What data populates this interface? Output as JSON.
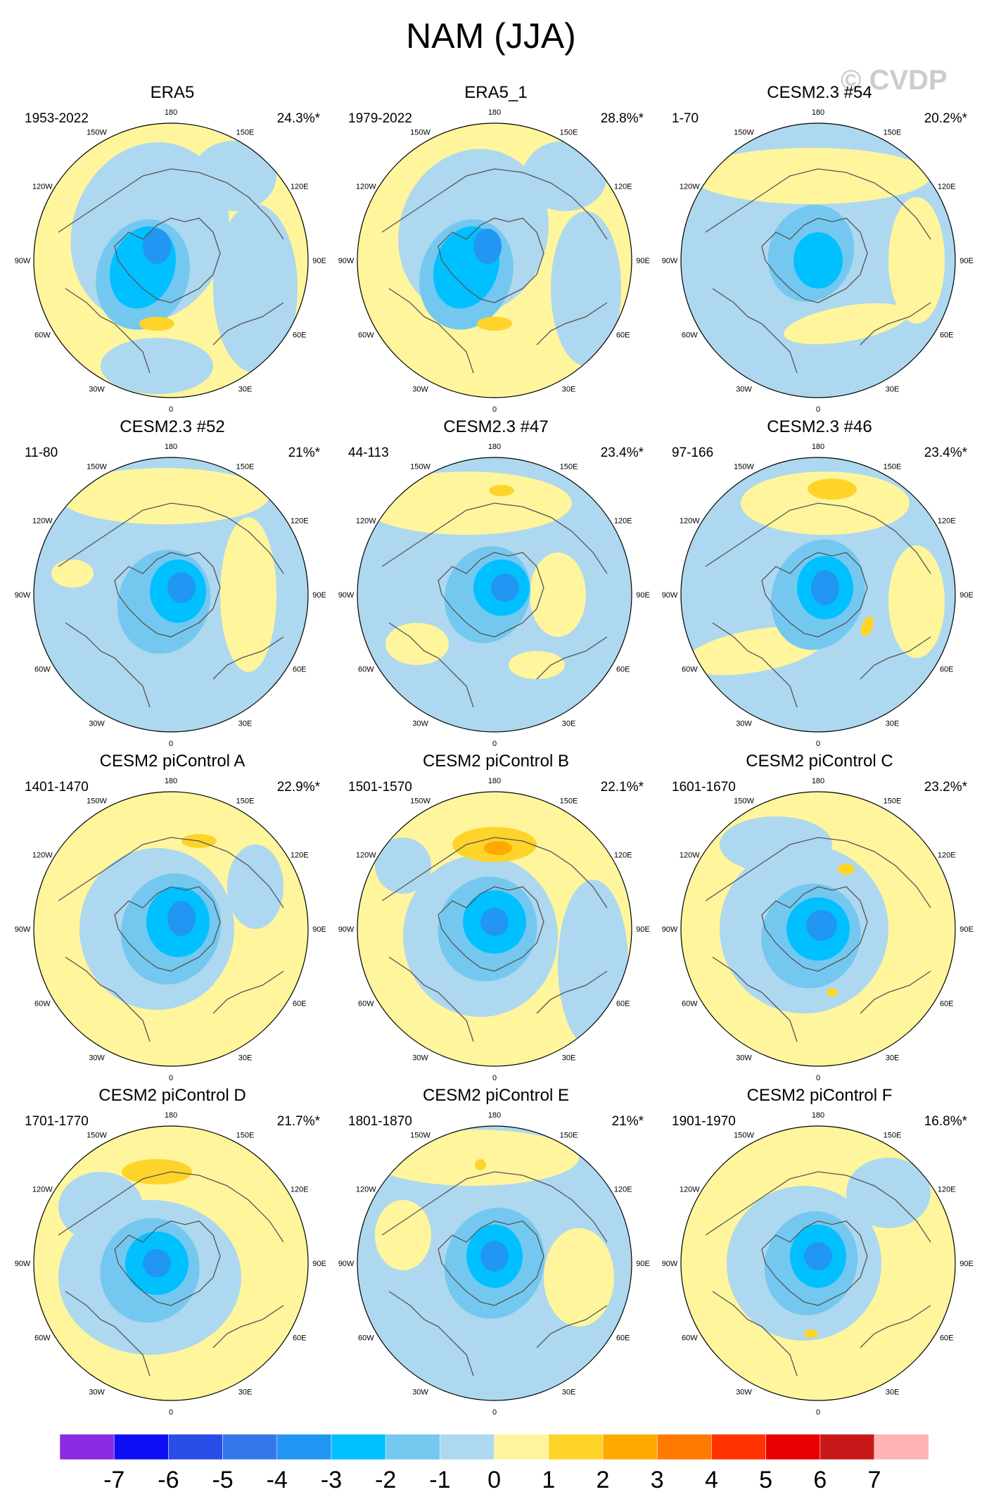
{
  "figure": {
    "title": "NAM (JJA)",
    "watermark": "© CVDP"
  },
  "map_labels": {
    "lon": [
      "180",
      "150E",
      "120E",
      "90E",
      "60E",
      "30E",
      "0",
      "30W",
      "60W",
      "90W",
      "120W",
      "150W"
    ]
  },
  "panels": [
    {
      "title": "ERA5",
      "years": "1953-2022",
      "pct": "24.3%*"
    },
    {
      "title": "ERA5_1",
      "years": "1979-2022",
      "pct": "28.8%*"
    },
    {
      "title": "CESM2.3 #54",
      "years": "1-70",
      "pct": "20.2%*"
    },
    {
      "title": "CESM2.3 #52",
      "years": "11-80",
      "pct": "21%*"
    },
    {
      "title": "CESM2.3 #47",
      "years": "44-113",
      "pct": "23.4%*"
    },
    {
      "title": "CESM2.3 #46",
      "years": "97-166",
      "pct": "23.4%*"
    },
    {
      "title": "CESM2 piControl A",
      "years": "1401-1470",
      "pct": "22.9%*"
    },
    {
      "title": "CESM2 piControl B",
      "years": "1501-1570",
      "pct": "22.1%*"
    },
    {
      "title": "CESM2 piControl C",
      "years": "1601-1670",
      "pct": "23.2%*"
    },
    {
      "title": "CESM2 piControl D",
      "years": "1701-1770",
      "pct": "21.7%*"
    },
    {
      "title": "CESM2 piControl E",
      "years": "1801-1870",
      "pct": "21%*"
    },
    {
      "title": "CESM2 piControl F",
      "years": "1901-1970",
      "pct": "16.8%*"
    }
  ],
  "colorbar": {
    "labels": [
      "-7",
      "-6",
      "-5",
      "-4",
      "-3",
      "-2",
      "-1",
      "0",
      "1",
      "2",
      "3",
      "4",
      "5",
      "6",
      "7"
    ],
    "colors": [
      "#8a2be2",
      "#0f0ff5",
      "#2a4de8",
      "#3577eb",
      "#2196f3",
      "#00c0ff",
      "#74c8f0",
      "#add8ef",
      "#fff59d",
      "#ffd42a",
      "#ffaa00",
      "#ff7a00",
      "#ff3300",
      "#e80000",
      "#c8191a",
      "#ffb3b3"
    ]
  }
}
